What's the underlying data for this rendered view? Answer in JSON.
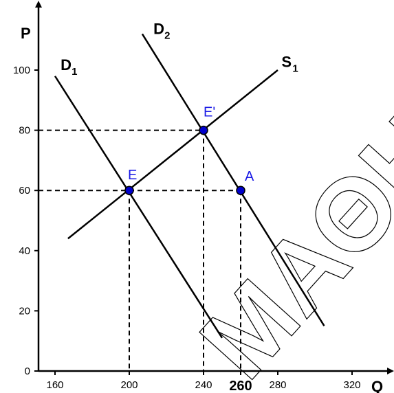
{
  "chart_data": {
    "type": "line",
    "title": "",
    "xlabel": "Q",
    "ylabel": "P",
    "xlim": [
      150,
      330
    ],
    "ylim": [
      0,
      110
    ],
    "x_ticks": [
      160,
      200,
      240,
      260,
      280,
      320
    ],
    "x_tick_labels": [
      "160",
      "200",
      "240",
      "260",
      "280",
      "320"
    ],
    "x_tick_emphasized": "260",
    "y_ticks": [
      0,
      20,
      40,
      60,
      80,
      100
    ],
    "y_tick_labels": [
      "0",
      "20",
      "40",
      "60",
      "80",
      "100"
    ],
    "grid": false,
    "series": [
      {
        "name": "D1",
        "label_main": "D",
        "label_sub": "1",
        "color": "#000000",
        "points": [
          [
            160,
            98
          ],
          [
            250,
            11
          ]
        ],
        "label_at": [
          163,
          100
        ]
      },
      {
        "name": "D2",
        "label_main": "D",
        "label_sub": "2",
        "color": "#000000",
        "points": [
          [
            207,
            112
          ],
          [
            305,
            15
          ]
        ],
        "label_at": [
          213,
          112
        ]
      },
      {
        "name": "S1",
        "label_main": "S",
        "label_sub": "1",
        "color": "#000000",
        "points": [
          [
            167,
            44
          ],
          [
            280,
            100
          ]
        ],
        "label_at": [
          282,
          101
        ]
      }
    ],
    "points": [
      {
        "label": "E",
        "x": 200,
        "y": 60,
        "label_dx": -2,
        "label_dy": -16,
        "color": "#0000cc"
      },
      {
        "label": "E'",
        "x": 240,
        "y": 80,
        "label_dx": 0,
        "label_dy": -20,
        "color": "#0000cc"
      },
      {
        "label": "A",
        "x": 260,
        "y": 60,
        "label_dx": 6,
        "label_dy": -14,
        "color": "#0000cc"
      }
    ],
    "guides": [
      {
        "from": [
          150,
          80
        ],
        "to": [
          240,
          80
        ]
      },
      {
        "from": [
          150,
          60
        ],
        "to": [
          260,
          60
        ]
      },
      {
        "from": [
          200,
          60
        ],
        "to": [
          200,
          0
        ]
      },
      {
        "from": [
          240,
          80
        ],
        "to": [
          240,
          0
        ]
      },
      {
        "from": [
          260,
          60
        ],
        "to": [
          260,
          0
        ]
      }
    ],
    "watermark": "ΜΑΘΗ"
  }
}
